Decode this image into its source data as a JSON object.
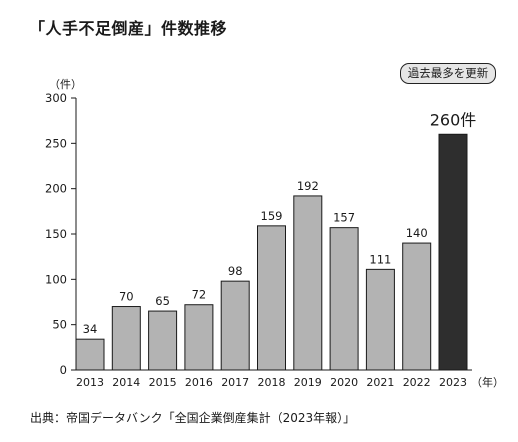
{
  "title": "「人手不足倒産」件数推移",
  "badge": "過去最多を更新",
  "source": "出典：帝国データバンク「全国企業倒産集計（2023年報）」",
  "colors": {
    "bar": "#b3b3b3",
    "highlight": "#2e2e2e",
    "outline": "#1a1a1a"
  },
  "chart_data": {
    "type": "bar",
    "categories": [
      "2013",
      "2014",
      "2015",
      "2016",
      "2017",
      "2018",
      "2019",
      "2020",
      "2021",
      "2022",
      "2023"
    ],
    "values": [
      34,
      70,
      65,
      72,
      98,
      159,
      192,
      157,
      111,
      140,
      260
    ],
    "value_labels": [
      "34",
      "70",
      "65",
      "72",
      "98",
      "159",
      "192",
      "157",
      "111",
      "140",
      "260件"
    ],
    "highlight_index": 10,
    "y_unit": "（件）",
    "x_unit": "（年）",
    "ylim": [
      0,
      300
    ],
    "yticks": [
      0,
      50,
      100,
      150,
      200,
      250,
      300
    ],
    "grid": false,
    "legend": "none"
  }
}
